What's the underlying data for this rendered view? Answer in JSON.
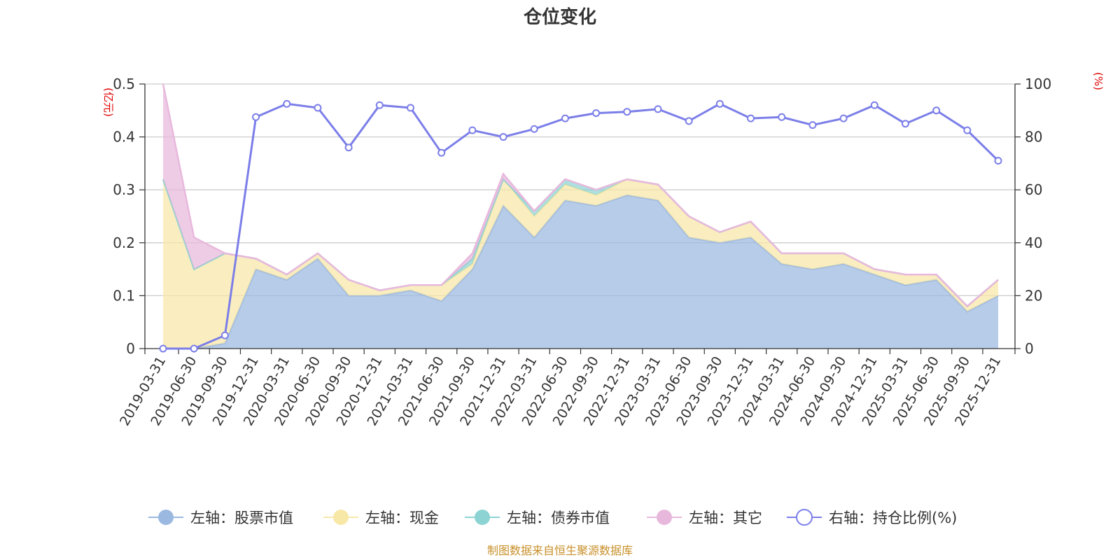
{
  "chart_data": {
    "type": "area+line",
    "title": "仓位变化",
    "left_axis": {
      "unit": "(亿元)",
      "ylim": [
        0,
        0.5
      ],
      "ticks": [
        "0",
        "0.1",
        "0.2",
        "0.3",
        "0.4",
        "0.5"
      ],
      "tick_values": [
        0,
        0.1,
        0.2,
        0.3,
        0.4,
        0.5
      ]
    },
    "right_axis": {
      "unit": "(%)",
      "ylim": [
        0,
        100
      ],
      "ticks": [
        "0",
        "20",
        "40",
        "60",
        "80",
        "100"
      ],
      "tick_values": [
        0,
        20,
        40,
        60,
        80,
        100
      ]
    },
    "categories": [
      "2019-03-31",
      "2019-06-30",
      "2019-09-30",
      "2019-12-31",
      "2020-03-31",
      "2020-06-30",
      "2020-09-30",
      "2020-12-31",
      "2021-03-31",
      "2021-06-30",
      "2021-09-30",
      "2021-12-31",
      "2022-03-31",
      "2022-06-30",
      "2022-09-30",
      "2022-12-31",
      "2023-03-31",
      "2023-06-30",
      "2023-09-30",
      "2023-12-31",
      "2024-03-31",
      "2024-06-30",
      "2024-09-30",
      "2024-12-31",
      "2025-03-31",
      "2025-06-30",
      "2025-09-30",
      "2025-12-31"
    ],
    "series": [
      {
        "name": "左轴：股票市值",
        "axis": "left",
        "kind": "area",
        "color": "#9bb8e0",
        "values": [
          0,
          0,
          0.01,
          0.15,
          0.13,
          0.17,
          0.1,
          0.1,
          0.11,
          0.09,
          0.15,
          0.27,
          0.21,
          0.28,
          0.27,
          0.29,
          0.28,
          0.21,
          0.2,
          0.21,
          0.16,
          0.15,
          0.16,
          0.14,
          0.12,
          0.13,
          0.07,
          0.1
        ]
      },
      {
        "name": "左轴：现金",
        "axis": "left",
        "kind": "area",
        "color": "#f8e8a8",
        "values": [
          0.32,
          0.15,
          0.17,
          0.02,
          0.01,
          0.01,
          0.03,
          0.01,
          0.01,
          0.03,
          0.01,
          0.05,
          0.04,
          0.03,
          0.02,
          0.03,
          0.03,
          0.04,
          0.02,
          0.03,
          0.02,
          0.03,
          0.02,
          0.01,
          0.02,
          0.01,
          0.01,
          0.03
        ]
      },
      {
        "name": "左轴：债券市值",
        "axis": "left",
        "kind": "area",
        "color": "#8dd3d3",
        "values": [
          0,
          0,
          0,
          0,
          0,
          0,
          0,
          0,
          0,
          0,
          0.01,
          0,
          0.01,
          0.01,
          0.01,
          0,
          0,
          0,
          0,
          0,
          0,
          0,
          0,
          0,
          0,
          0,
          0,
          0
        ]
      },
      {
        "name": "左轴：其它",
        "axis": "left",
        "kind": "area",
        "color": "#e8b8dc",
        "values": [
          0.18,
          0.06,
          0,
          0,
          0,
          0,
          0,
          0,
          0,
          0,
          0.01,
          0.01,
          0,
          0,
          0,
          0,
          0,
          0,
          0,
          0,
          0,
          0,
          0,
          0,
          0,
          0,
          0,
          0
        ]
      },
      {
        "name": "右轴：持仓比例(%)",
        "axis": "right",
        "kind": "line",
        "color": "#7b7ee8",
        "values": [
          0,
          0,
          5,
          87.5,
          92.5,
          91,
          76,
          92,
          91,
          74,
          82.5,
          80,
          83,
          87,
          89,
          89.5,
          90.5,
          86,
          92.5,
          87,
          87.5,
          84.5,
          87,
          92,
          85,
          90,
          82.5,
          71
        ]
      }
    ],
    "legend_position": "bottom",
    "source_note": "制图数据来自恒生聚源数据库"
  }
}
